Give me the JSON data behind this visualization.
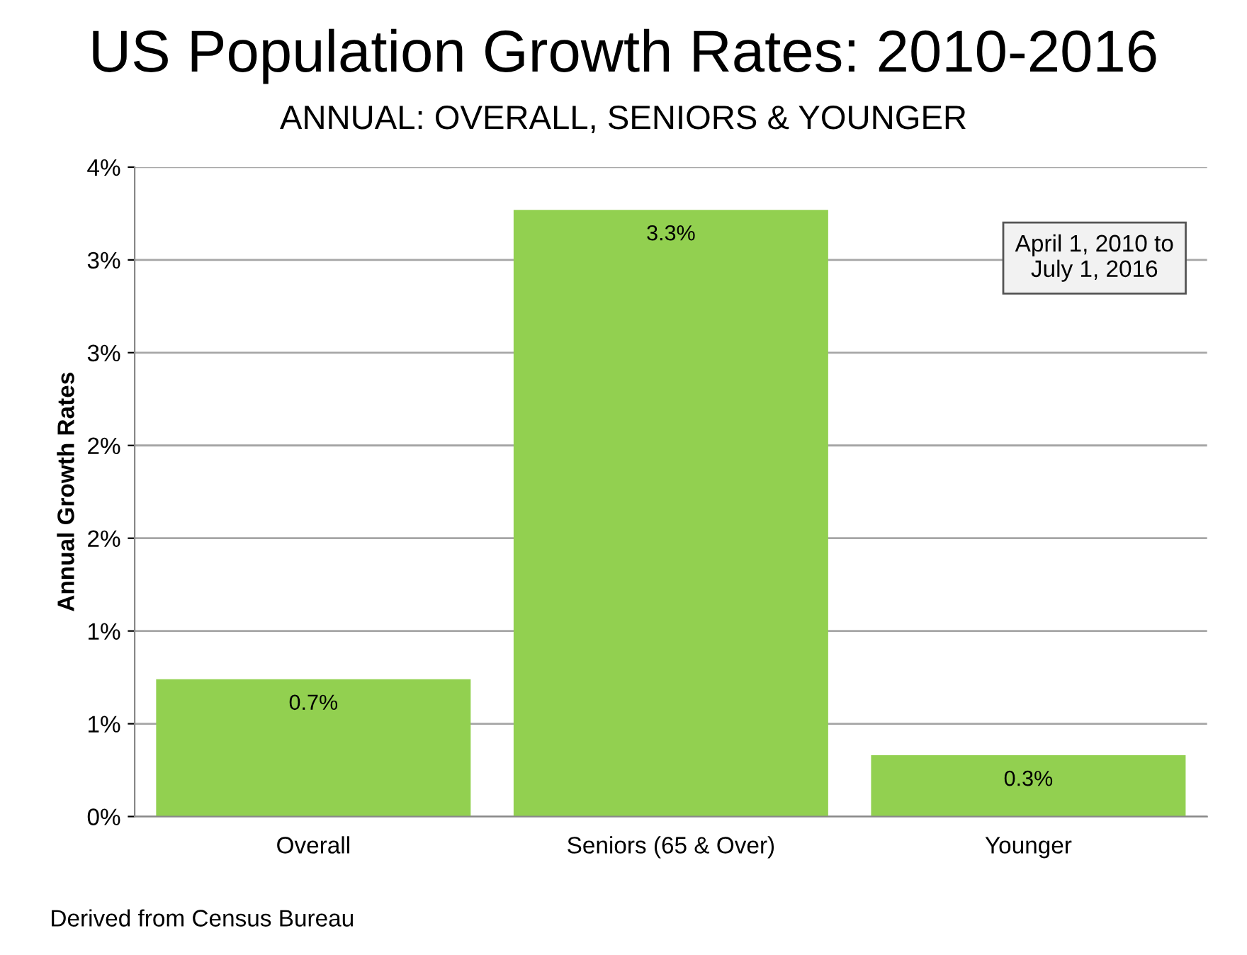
{
  "chart_data": {
    "type": "bar",
    "title": "US Population Growth Rates: 2010-2016",
    "subtitle": "ANNUAL: OVERALL, SENIORS & YOUNGER",
    "ylabel": "Annual Growth Rates",
    "categories": [
      "Overall",
      "Seniors (65 & Over)",
      "Younger"
    ],
    "values": [
      0.74,
      3.27,
      0.33
    ],
    "value_labels": [
      "0.7%",
      "3.3%",
      "0.3%"
    ],
    "color": "#92d050",
    "ylim": [
      0,
      3.5
    ],
    "yticks": [
      {
        "value": 0,
        "label": "0%"
      },
      {
        "value": 0.5,
        "label": "1%"
      },
      {
        "value": 1,
        "label": "1%"
      },
      {
        "value": 1.5,
        "label": "2%"
      },
      {
        "value": 2,
        "label": "2%"
      },
      {
        "value": 2.5,
        "label": "3%"
      },
      {
        "value": 3,
        "label": "3%"
      },
      {
        "value": 3.5,
        "label": "4%"
      }
    ],
    "grid": "y",
    "legend": false,
    "annotations": [
      "April 1, 2010 to\nJuly 1, 2016",
      "Derived from Census Bureau"
    ]
  }
}
